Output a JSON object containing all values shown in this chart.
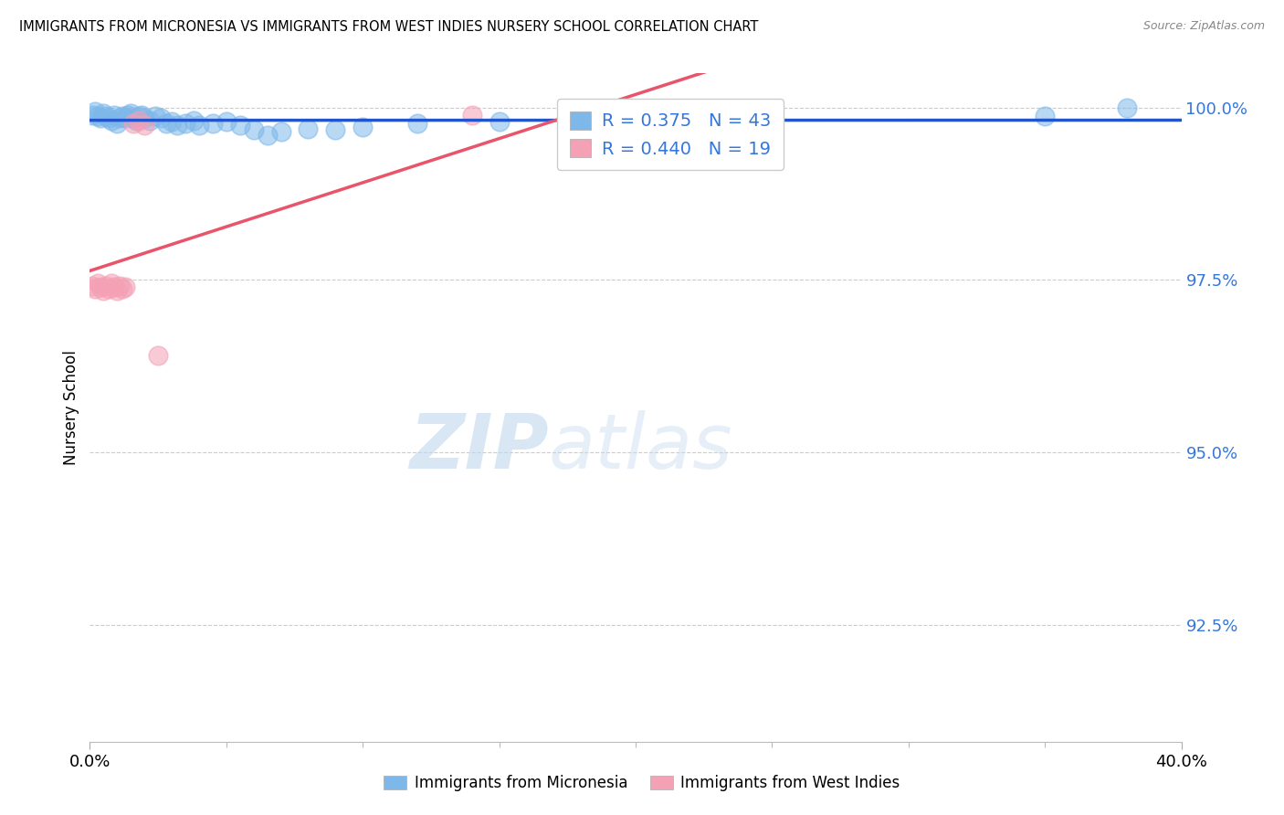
{
  "title": "IMMIGRANTS FROM MICRONESIA VS IMMIGRANTS FROM WEST INDIES NURSERY SCHOOL CORRELATION CHART",
  "source": "Source: ZipAtlas.com",
  "ylabel": "Nursery School",
  "legend_blue_r": "0.375",
  "legend_blue_n": "43",
  "legend_pink_r": "0.440",
  "legend_pink_n": "19",
  "blue_scatter_x": [
    0.001,
    0.002,
    0.003,
    0.004,
    0.005,
    0.006,
    0.007,
    0.008,
    0.009,
    0.01,
    0.011,
    0.012,
    0.013,
    0.014,
    0.015,
    0.016,
    0.017,
    0.018,
    0.019,
    0.02,
    0.022,
    0.024,
    0.026,
    0.028,
    0.03,
    0.032,
    0.035,
    0.038,
    0.04,
    0.045,
    0.05,
    0.055,
    0.06,
    0.065,
    0.07,
    0.08,
    0.09,
    0.1,
    0.12,
    0.15,
    0.18,
    0.35,
    0.38
  ],
  "blue_scatter_y": [
    0.999,
    0.9995,
    0.9988,
    0.9985,
    0.9992,
    0.9988,
    0.9985,
    0.9982,
    0.999,
    0.9978,
    0.9985,
    0.9988,
    0.9985,
    0.999,
    0.9992,
    0.9985,
    0.9982,
    0.9988,
    0.999,
    0.9985,
    0.9982,
    0.9988,
    0.9985,
    0.9978,
    0.998,
    0.9975,
    0.9978,
    0.9982,
    0.9975,
    0.9978,
    0.998,
    0.9975,
    0.9968,
    0.996,
    0.9965,
    0.997,
    0.9968,
    0.9972,
    0.9978,
    0.998,
    0.9975,
    0.9988,
    1.0
  ],
  "pink_scatter_x": [
    0.001,
    0.002,
    0.003,
    0.004,
    0.005,
    0.006,
    0.007,
    0.008,
    0.009,
    0.01,
    0.011,
    0.012,
    0.013,
    0.016,
    0.018,
    0.02,
    0.025,
    0.14,
    0.21
  ],
  "pink_scatter_y": [
    0.9742,
    0.9738,
    0.9745,
    0.974,
    0.9735,
    0.9742,
    0.9738,
    0.9745,
    0.974,
    0.9735,
    0.9742,
    0.9738,
    0.974,
    0.9978,
    0.9982,
    0.9975,
    0.964,
    0.999,
    0.9985
  ],
  "xlim": [
    0.0,
    0.4
  ],
  "ylim": [
    0.908,
    1.005
  ],
  "ytick_positions": [
    0.925,
    0.95,
    0.975,
    1.0
  ],
  "ytick_labels": [
    "92.5%",
    "95.0%",
    "97.5%",
    "100.0%"
  ],
  "xtick_labels": [
    "0.0%",
    "40.0%"
  ],
  "xtick_positions": [
    0.0,
    0.4
  ],
  "blue_scatter_color": "#7EB8EA",
  "pink_scatter_color": "#F4A0B5",
  "blue_line_color": "#2255CC",
  "pink_line_color": "#E8556A",
  "ytick_color": "#3377DD",
  "grid_color": "#CCCCCC",
  "watermark_color": "#C8DCF0",
  "bottom_legend_labels": [
    "Immigrants from Micronesia",
    "Immigrants from West Indies"
  ]
}
